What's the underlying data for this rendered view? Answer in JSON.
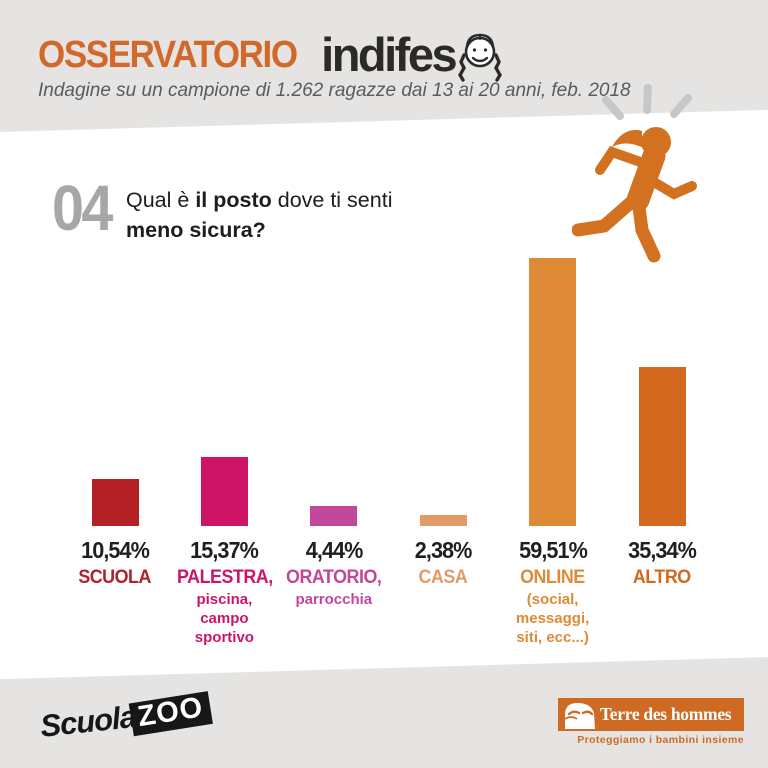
{
  "header": {
    "brand_primary": "OSSERVATORIO",
    "brand_secondary": "indifes",
    "brand_word_full": "indifesa",
    "subtitle": "Indagine su un campione di 1.262 ragazze dai 13 ai 20 anni, feb. 2018"
  },
  "question": {
    "number": "04",
    "part1": "Qual è ",
    "bold1": "il posto",
    "part2": " dove ti senti",
    "bold2": "meno sicura?"
  },
  "chart_data": {
    "type": "bar",
    "title": "Qual è il posto dove ti senti meno sicura?",
    "unit": "percent",
    "ylim": [
      0,
      60
    ],
    "grid": false,
    "legend": false,
    "categories": [
      "SCUOLA",
      "PALESTRA, piscina, campo sportivo",
      "ORATORIO, parrocchia",
      "CASA",
      "ONLINE (social, messaggi, siti, ecc...)",
      "ALTRO"
    ],
    "values": [
      10.54,
      15.37,
      4.44,
      2.38,
      59.51,
      35.34
    ],
    "columns": [
      {
        "pct": "10,54%",
        "name": "SCUOLA",
        "sub": "",
        "color": "#b32025",
        "value": 10.54
      },
      {
        "pct": "15,37%",
        "name": "PALESTRA,",
        "sub": "piscina,\ncampo\nsportivo",
        "color": "#ce1467",
        "value": 15.37
      },
      {
        "pct": "4,44%",
        "name": "ORATORIO,",
        "sub": "parrocchia",
        "color": "#c2479b",
        "value": 4.44
      },
      {
        "pct": "2,38%",
        "name": "CASA",
        "sub": "",
        "color": "#e29b66",
        "value": 2.38
      },
      {
        "pct": "59,51%",
        "name": "ONLINE",
        "sub": "(social,\nmessaggi,\nsiti, ecc...)",
        "color": "#de8a37",
        "value": 59.51
      },
      {
        "pct": "35,34%",
        "name": "ALTRO",
        "sub": "",
        "color": "#d2691e",
        "value": 35.34
      }
    ]
  },
  "icons": {
    "girl_face": "girl-face-icon",
    "runner": "running-girl-icon",
    "alarm": "alarm-dashes-icon",
    "tdh_face": "terre-des-hommes-face-icon"
  },
  "colors": {
    "background": "#e5e4e2",
    "panel": "#ffffff",
    "accent_orange": "#d2692a",
    "brand_black": "#2b2a29",
    "subtitle_gray": "#5a5b5d",
    "question_number_gray": "#a8a6a7",
    "runner_orange": "#d2711f",
    "alarm_gray": "#c7c7c7",
    "tdh_orange": "#cf6a23"
  },
  "footer": {
    "scuolazoo_part1": "Scuola",
    "scuolazoo_part2": "ZOO",
    "tdh_name": "Terre des hommes",
    "tdh_tagline": "Proteggiamo i bambini insieme"
  }
}
